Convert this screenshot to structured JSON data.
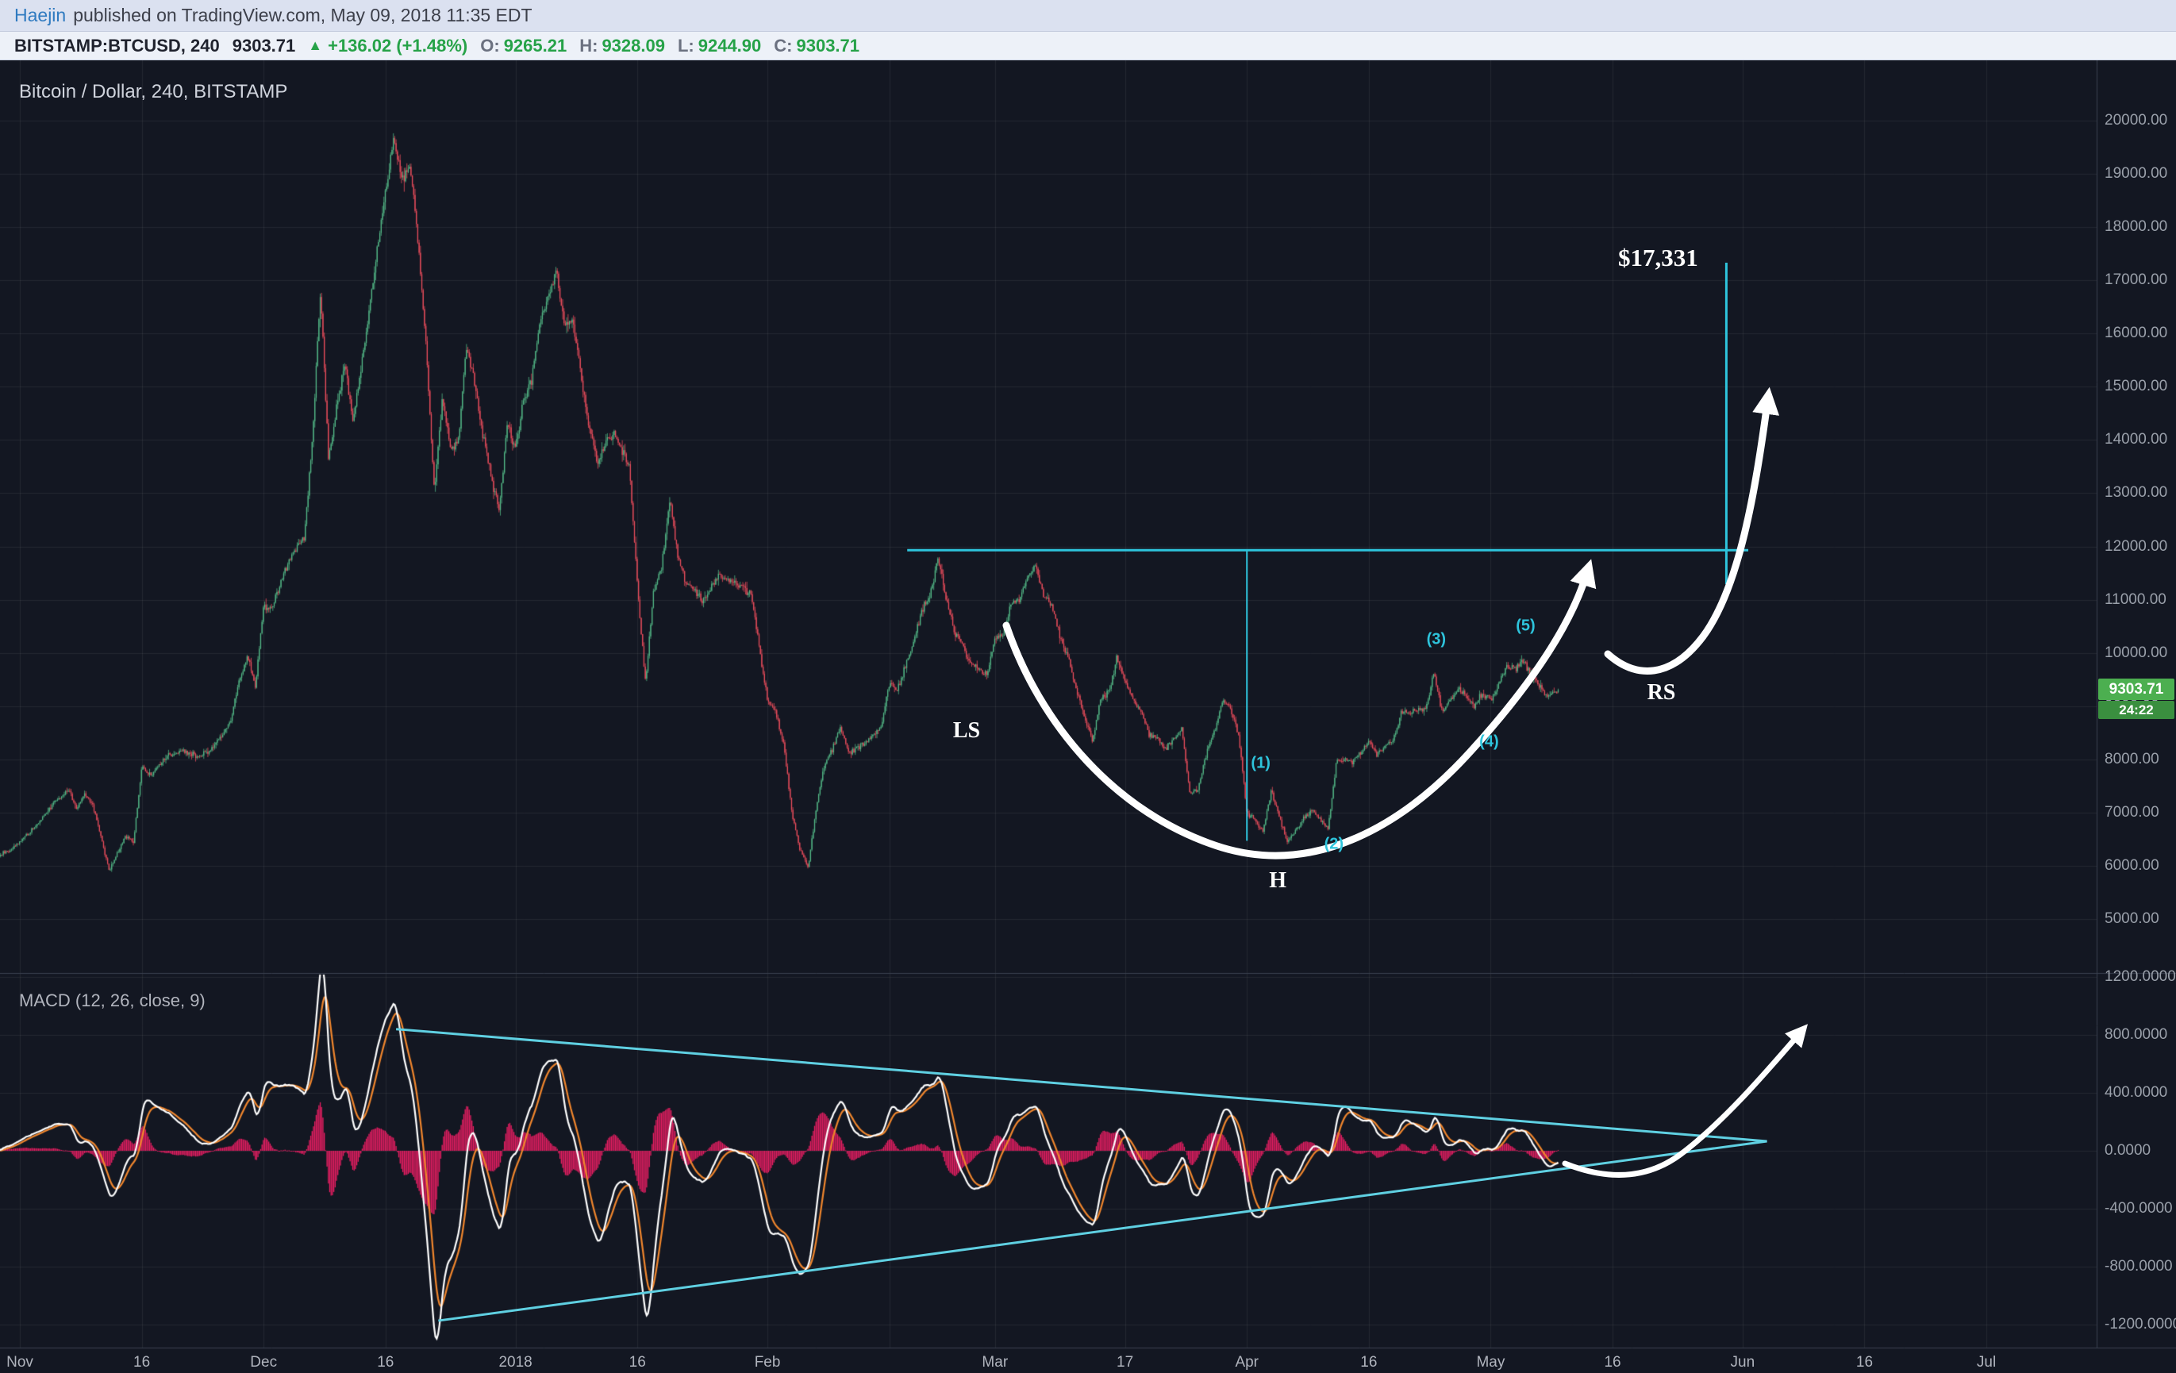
{
  "header": {
    "author": "Haejin",
    "published": "published on TradingView.com, May 09, 2018 11:35 EDT",
    "symbol": "BITSTAMP:BTCUSD, 240",
    "last_price": "9303.71",
    "up_icon": "▲",
    "change": "+136.02 (+1.48%)",
    "ohlc": [
      {
        "k": "O:",
        "v": "9265.21"
      },
      {
        "k": "H:",
        "v": "9328.09"
      },
      {
        "k": "L:",
        "v": "9244.90"
      },
      {
        "k": "C:",
        "v": "9303.71"
      }
    ]
  },
  "price_scale": {
    "current_badge": "9303.71",
    "countdown": "24:22"
  },
  "colors": {
    "background": "#131722",
    "candle_up": "#53b987",
    "candle_down": "#eb4d5c",
    "macd_histogram": "#e91e63",
    "macd_line": "#ffffff",
    "macd_signal": "#f0862d",
    "annotation_cyan": "#2ec4dc",
    "triangle_cyan": "#5fd0e2",
    "annotation_white": "#ffffff",
    "badge_green": "#4caf50",
    "countdown_green": "#3a8f3f",
    "header_green": "#26a248",
    "link_blue": "#2f7ac0",
    "axis_text": "#9aa0aa"
  },
  "chart_data": [
    {
      "type": "candlestick",
      "title": "Bitcoin / Dollar, 240, BITSTAMP",
      "symbol": "BITSTAMP:BTCUSD",
      "interval_minutes": 240,
      "x_unit": "days since 2017-11-01",
      "bar_step_days": 0.16667,
      "ylim": [
        4600,
        21100
      ],
      "y_ticks": [
        {
          "label": "20000.00",
          "value": 20000
        },
        {
          "label": "19000.00",
          "value": 19000
        },
        {
          "label": "18000.00",
          "value": 18000
        },
        {
          "label": "17000.00",
          "value": 17000
        },
        {
          "label": "16000.00",
          "value": 16000
        },
        {
          "label": "15000.00",
          "value": 15000
        },
        {
          "label": "14000.00",
          "value": 14000
        },
        {
          "label": "13000.00",
          "value": 13000
        },
        {
          "label": "12000.00",
          "value": 12000
        },
        {
          "label": "11000.00",
          "value": 11000
        },
        {
          "label": "10000.00",
          "value": 10000
        },
        {
          "label": "9000.00",
          "value": 9000
        },
        {
          "label": "8000.00",
          "value": 8000
        },
        {
          "label": "7000.00",
          "value": 7000
        },
        {
          "label": "6000.00",
          "value": 6000
        },
        {
          "label": "5000.00",
          "value": 5000
        }
      ],
      "x_ticks": [
        {
          "label": "Nov",
          "day": 0
        },
        {
          "label": "16",
          "day": 15
        },
        {
          "label": "Dec",
          "day": 30
        },
        {
          "label": "16",
          "day": 45
        },
        {
          "label": "2018",
          "day": 61
        },
        {
          "label": "16",
          "day": 76
        },
        {
          "label": "Feb",
          "day": 92
        },
        {
          "label": "",
          "day": 107
        },
        {
          "label": "Mar",
          "day": 120
        },
        {
          "label": "17",
          "day": 136
        },
        {
          "label": "Apr",
          "day": 151
        },
        {
          "label": "16",
          "day": 166
        },
        {
          "label": "May",
          "day": 181
        },
        {
          "label": "16",
          "day": 196
        },
        {
          "label": "Jun",
          "day": 212
        },
        {
          "label": "16",
          "day": 227
        },
        {
          "label": "Jul",
          "day": 242
        }
      ],
      "price_path": [
        [
          -3,
          6150
        ],
        [
          -1,
          6320
        ],
        [
          0,
          6450
        ],
        [
          2,
          6750
        ],
        [
          4,
          7150
        ],
        [
          6,
          7450
        ],
        [
          7,
          7050
        ],
        [
          8,
          7350
        ],
        [
          9,
          7150
        ],
        [
          11,
          5900
        ],
        [
          12,
          6250
        ],
        [
          13,
          6550
        ],
        [
          14,
          6450
        ],
        [
          15,
          7850
        ],
        [
          16,
          7700
        ],
        [
          18,
          8050
        ],
        [
          20,
          8150
        ],
        [
          22,
          8050
        ],
        [
          24,
          8250
        ],
        [
          26,
          8750
        ],
        [
          27,
          9500
        ],
        [
          28,
          9950
        ],
        [
          29,
          9350
        ],
        [
          30,
          10900
        ],
        [
          31,
          10850
        ],
        [
          33,
          11700
        ],
        [
          35,
          12200
        ],
        [
          36,
          14000
        ],
        [
          37,
          16850
        ],
        [
          38,
          13600
        ],
        [
          39,
          14600
        ],
        [
          40,
          15400
        ],
        [
          41,
          14300
        ],
        [
          43,
          16450
        ],
        [
          44,
          17600
        ],
        [
          46,
          19660
        ],
        [
          47,
          18900
        ],
        [
          48,
          19150
        ],
        [
          49,
          17700
        ],
        [
          50,
          15800
        ],
        [
          51,
          13000
        ],
        [
          52,
          14800
        ],
        [
          53,
          13800
        ],
        [
          54,
          14050
        ],
        [
          55,
          15800
        ],
        [
          56,
          15000
        ],
        [
          57,
          14100
        ],
        [
          58,
          13300
        ],
        [
          59,
          12700
        ],
        [
          60,
          14300
        ],
        [
          61,
          13850
        ],
        [
          62,
          14750
        ],
        [
          63,
          15150
        ],
        [
          64,
          16200
        ],
        [
          66,
          17170
        ],
        [
          67,
          16150
        ],
        [
          68,
          16250
        ],
        [
          70,
          14300
        ],
        [
          71,
          13600
        ],
        [
          73,
          14150
        ],
        [
          75,
          13500
        ],
        [
          76,
          11300
        ],
        [
          77,
          9400
        ],
        [
          78,
          11200
        ],
        [
          79,
          11600
        ],
        [
          80,
          12900
        ],
        [
          81,
          11800
        ],
        [
          82,
          11300
        ],
        [
          84,
          11000
        ],
        [
          86,
          11450
        ],
        [
          88,
          11300
        ],
        [
          90,
          11100
        ],
        [
          91,
          10100
        ],
        [
          92,
          9100
        ],
        [
          93,
          8900
        ],
        [
          94,
          8300
        ],
        [
          95,
          7000
        ],
        [
          96,
          6300
        ],
        [
          97,
          5950
        ],
        [
          98,
          7100
        ],
        [
          99,
          7900
        ],
        [
          100,
          8200
        ],
        [
          101,
          8600
        ],
        [
          102,
          8100
        ],
        [
          104,
          8300
        ],
        [
          106,
          8650
        ],
        [
          107,
          9400
        ],
        [
          108,
          9300
        ],
        [
          110,
          10200
        ],
        [
          111,
          10800
        ],
        [
          112,
          11100
        ],
        [
          113,
          11780
        ],
        [
          114,
          11000
        ],
        [
          115,
          10400
        ],
        [
          116,
          10150
        ],
        [
          117,
          9800
        ],
        [
          119,
          9600
        ],
        [
          120,
          10300
        ],
        [
          121,
          10350
        ],
        [
          122,
          10950
        ],
        [
          123,
          11000
        ],
        [
          124,
          11450
        ],
        [
          125,
          11660
        ],
        [
          126,
          11050
        ],
        [
          127,
          10900
        ],
        [
          128,
          10300
        ],
        [
          129,
          9900
        ],
        [
          130,
          9300
        ],
        [
          131,
          8800
        ],
        [
          132,
          8350
        ],
        [
          133,
          9150
        ],
        [
          134,
          9250
        ],
        [
          135,
          9900
        ],
        [
          136,
          9450
        ],
        [
          137,
          9100
        ],
        [
          138,
          8900
        ],
        [
          139,
          8450
        ],
        [
          140,
          8400
        ],
        [
          141,
          8200
        ],
        [
          143,
          8550
        ],
        [
          144,
          7350
        ],
        [
          145,
          7450
        ],
        [
          146,
          8100
        ],
        [
          147,
          8500
        ],
        [
          148,
          9100
        ],
        [
          149,
          8950
        ],
        [
          150,
          8450
        ],
        [
          151,
          7000
        ],
        [
          152,
          6850
        ],
        [
          153,
          6650
        ],
        [
          154,
          7400
        ],
        [
          155,
          6900
        ],
        [
          156,
          6450
        ],
        [
          157,
          6650
        ],
        [
          158,
          6900
        ],
        [
          159,
          7050
        ],
        [
          160,
          6850
        ],
        [
          161,
          6700
        ],
        [
          162,
          7950
        ],
        [
          163,
          8000
        ],
        [
          164,
          7950
        ],
        [
          165,
          8150
        ],
        [
          166,
          8350
        ],
        [
          167,
          8100
        ],
        [
          168,
          8250
        ],
        [
          169,
          8350
        ],
        [
          170,
          8900
        ],
        [
          171,
          8850
        ],
        [
          172,
          8950
        ],
        [
          173,
          8900
        ],
        [
          174,
          9650
        ],
        [
          175,
          8900
        ],
        [
          176,
          9100
        ],
        [
          177,
          9350
        ],
        [
          178,
          9200
        ],
        [
          179,
          9000
        ],
        [
          180,
          9250
        ],
        [
          181,
          9100
        ],
        [
          182,
          9400
        ],
        [
          183,
          9750
        ],
        [
          184,
          9700
        ],
        [
          185,
          9850
        ],
        [
          186,
          9600
        ],
        [
          187,
          9350
        ],
        [
          188,
          9200
        ],
        [
          189,
          9280
        ],
        [
          189.5,
          9304
        ]
      ],
      "last_bar": {
        "open": 9265.21,
        "high": 9328.09,
        "low": 9244.9,
        "close": 9303.71,
        "change": 136.02,
        "change_pct": 1.48
      },
      "annotations": {
        "neckline": {
          "price": 11930,
          "from_day": 109.2,
          "to_day": 212.7
        },
        "head_measure": {
          "day": 151,
          "from_price": 11930,
          "to_price": 6470
        },
        "target_line": {
          "day": 210,
          "from_price": 11290,
          "to_price": 17331
        },
        "target": {
          "label": "$17,331",
          "day": 201.6,
          "price": 17420
        },
        "pattern_labels": [
          {
            "text": "LS",
            "day": 116.5,
            "price": 8530
          },
          {
            "text": "H",
            "day": 154.8,
            "price": 5715
          },
          {
            "text": "RS",
            "day": 202.0,
            "price": 9250
          }
        ],
        "wave_labels": [
          {
            "text": "(1)",
            "day": 152.7,
            "price": 7920
          },
          {
            "text": "(2)",
            "day": 161.7,
            "price": 6400
          },
          {
            "text": "(3)",
            "day": 174.3,
            "price": 10250
          },
          {
            "text": "(4)",
            "day": 180.8,
            "price": 8330
          },
          {
            "text": "(5)",
            "day": 185.3,
            "price": 10500
          }
        ]
      }
    },
    {
      "type": "macd",
      "name": "MACD (12, 26, close, 9)",
      "fast": 12,
      "slow": 26,
      "source": "close",
      "signal": 9,
      "computed_from": "price_path candles",
      "y_ticks": [
        {
          "label": "1200.0000",
          "value": 1200
        },
        {
          "label": "800.0000",
          "value": 800
        },
        {
          "label": "400.0000",
          "value": 400
        },
        {
          "label": "0.0000",
          "value": 0
        },
        {
          "label": "-400.0000",
          "value": -400
        },
        {
          "label": "-800.0000",
          "value": -800
        },
        {
          "label": "-1200.0000",
          "value": -1200
        }
      ],
      "triangle": {
        "upper": [
          [
            46.3,
            840
          ],
          [
            215,
            66
          ]
        ],
        "lower": [
          [
            51.5,
            -1173
          ],
          [
            215,
            66
          ]
        ]
      }
    }
  ]
}
